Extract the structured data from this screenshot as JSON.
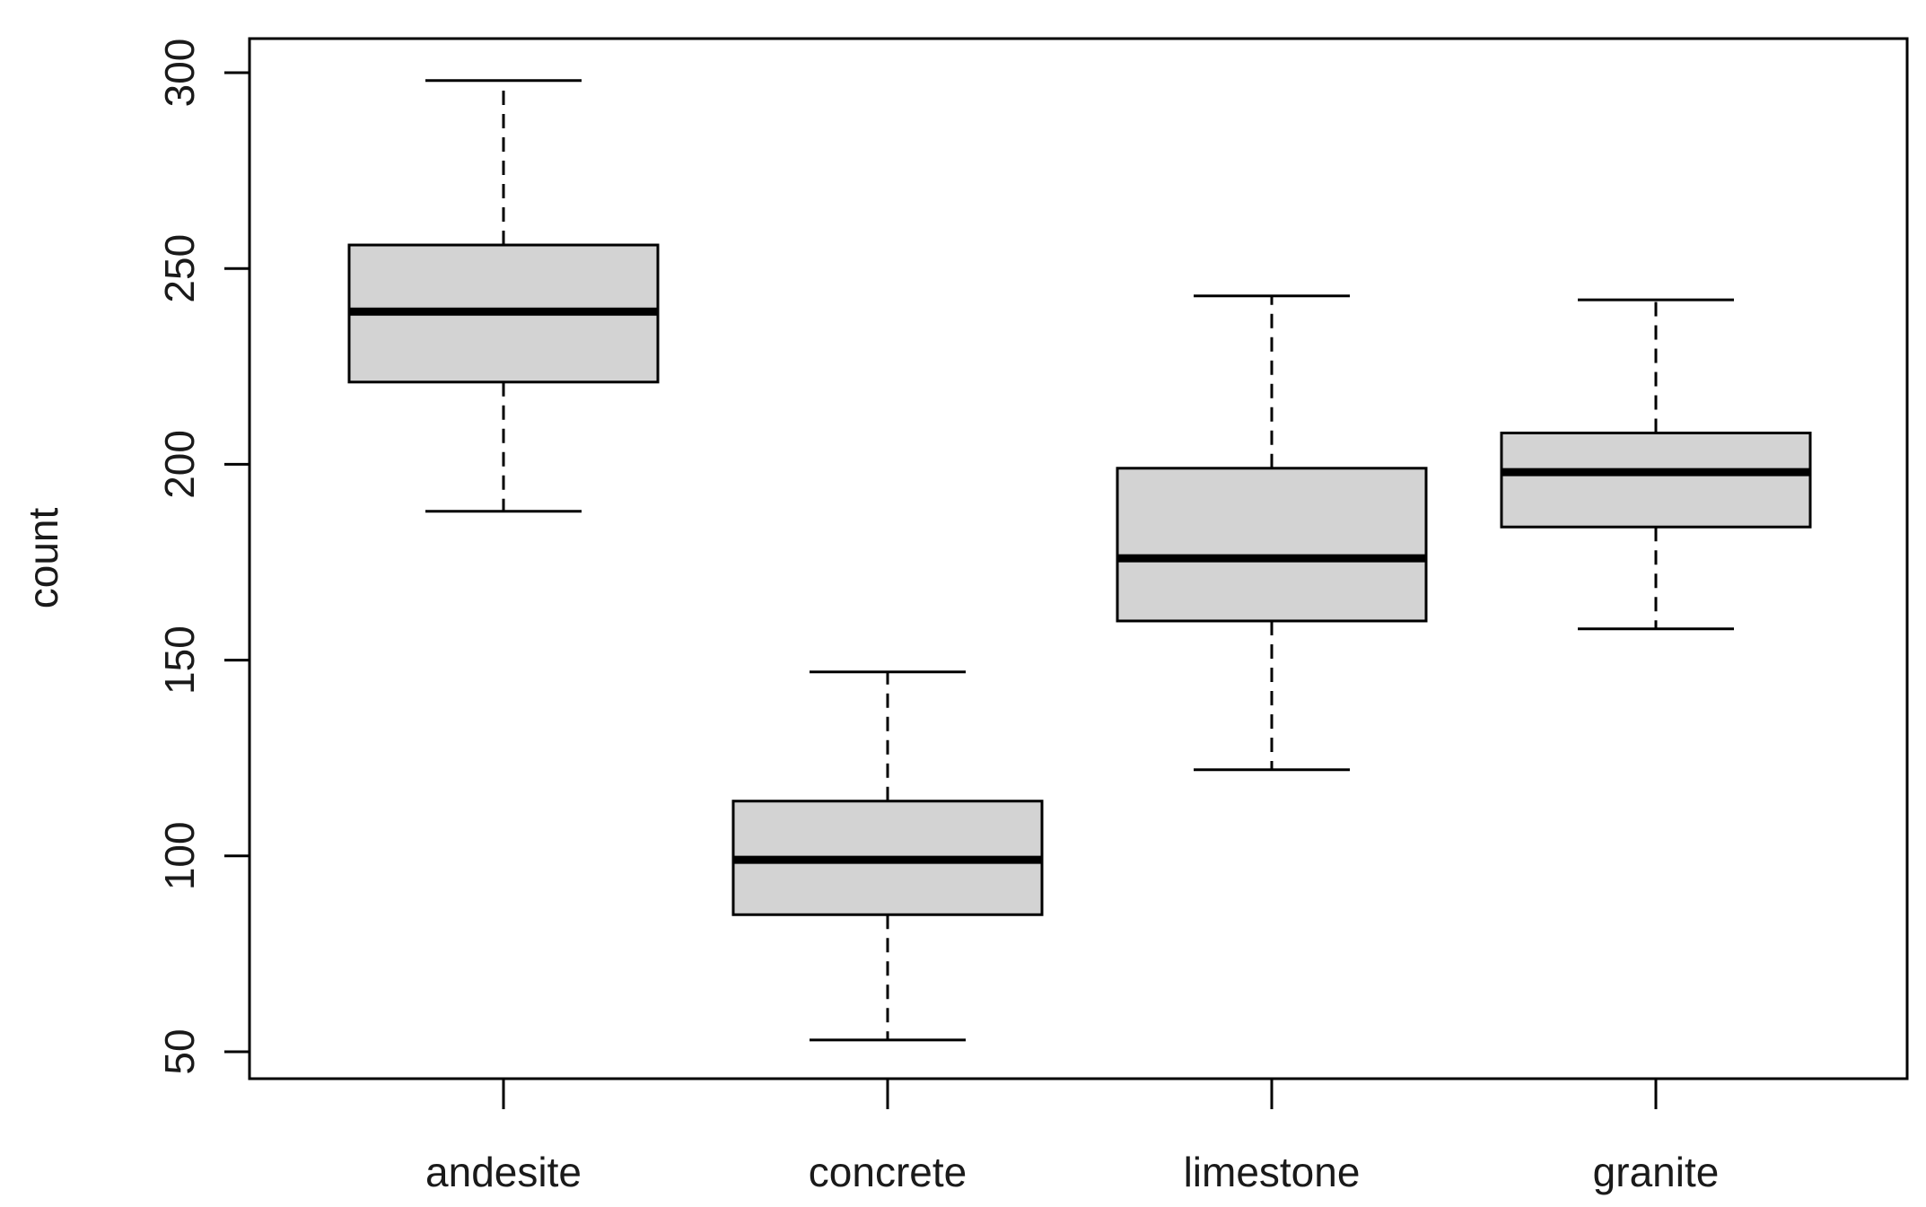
{
  "chart_data": {
    "type": "boxplot",
    "title": "",
    "xlabel": "",
    "ylabel": "count",
    "ylim": [
      42,
      308
    ],
    "yticks": [
      50,
      100,
      150,
      200,
      250,
      300
    ],
    "categories": [
      "andesite",
      "concrete",
      "limestone",
      "granite"
    ],
    "boxes": [
      {
        "name": "andesite",
        "whisker_low": 188,
        "q1": 221,
        "median": 239,
        "q3": 256,
        "whisker_high": 298
      },
      {
        "name": "concrete",
        "whisker_low": 53,
        "q1": 85,
        "median": 99,
        "q3": 114,
        "whisker_high": 147
      },
      {
        "name": "limestone",
        "whisker_low": 122,
        "q1": 160,
        "median": 176,
        "q3": 199,
        "whisker_high": 243
      },
      {
        "name": "granite",
        "whisker_low": 158,
        "q1": 184,
        "median": 198,
        "q3": 208,
        "whisker_high": 242
      }
    ],
    "grid": false,
    "box_fill": "#d3d3d3",
    "line_color": "#000000"
  }
}
